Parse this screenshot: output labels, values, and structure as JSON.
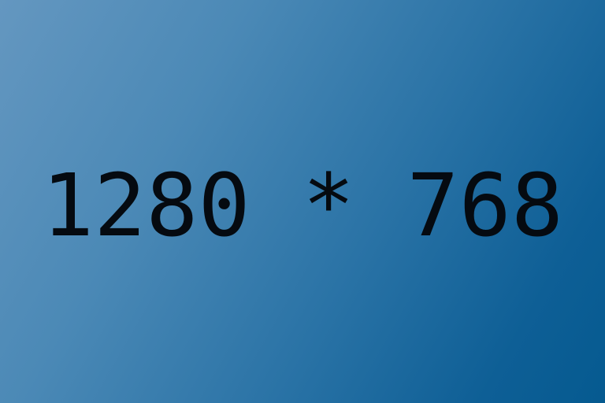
{
  "placeholder": {
    "text": "1280 * 768",
    "background_gradient": [
      "#6497c0",
      "#055a90"
    ],
    "text_color": "#050a10"
  }
}
